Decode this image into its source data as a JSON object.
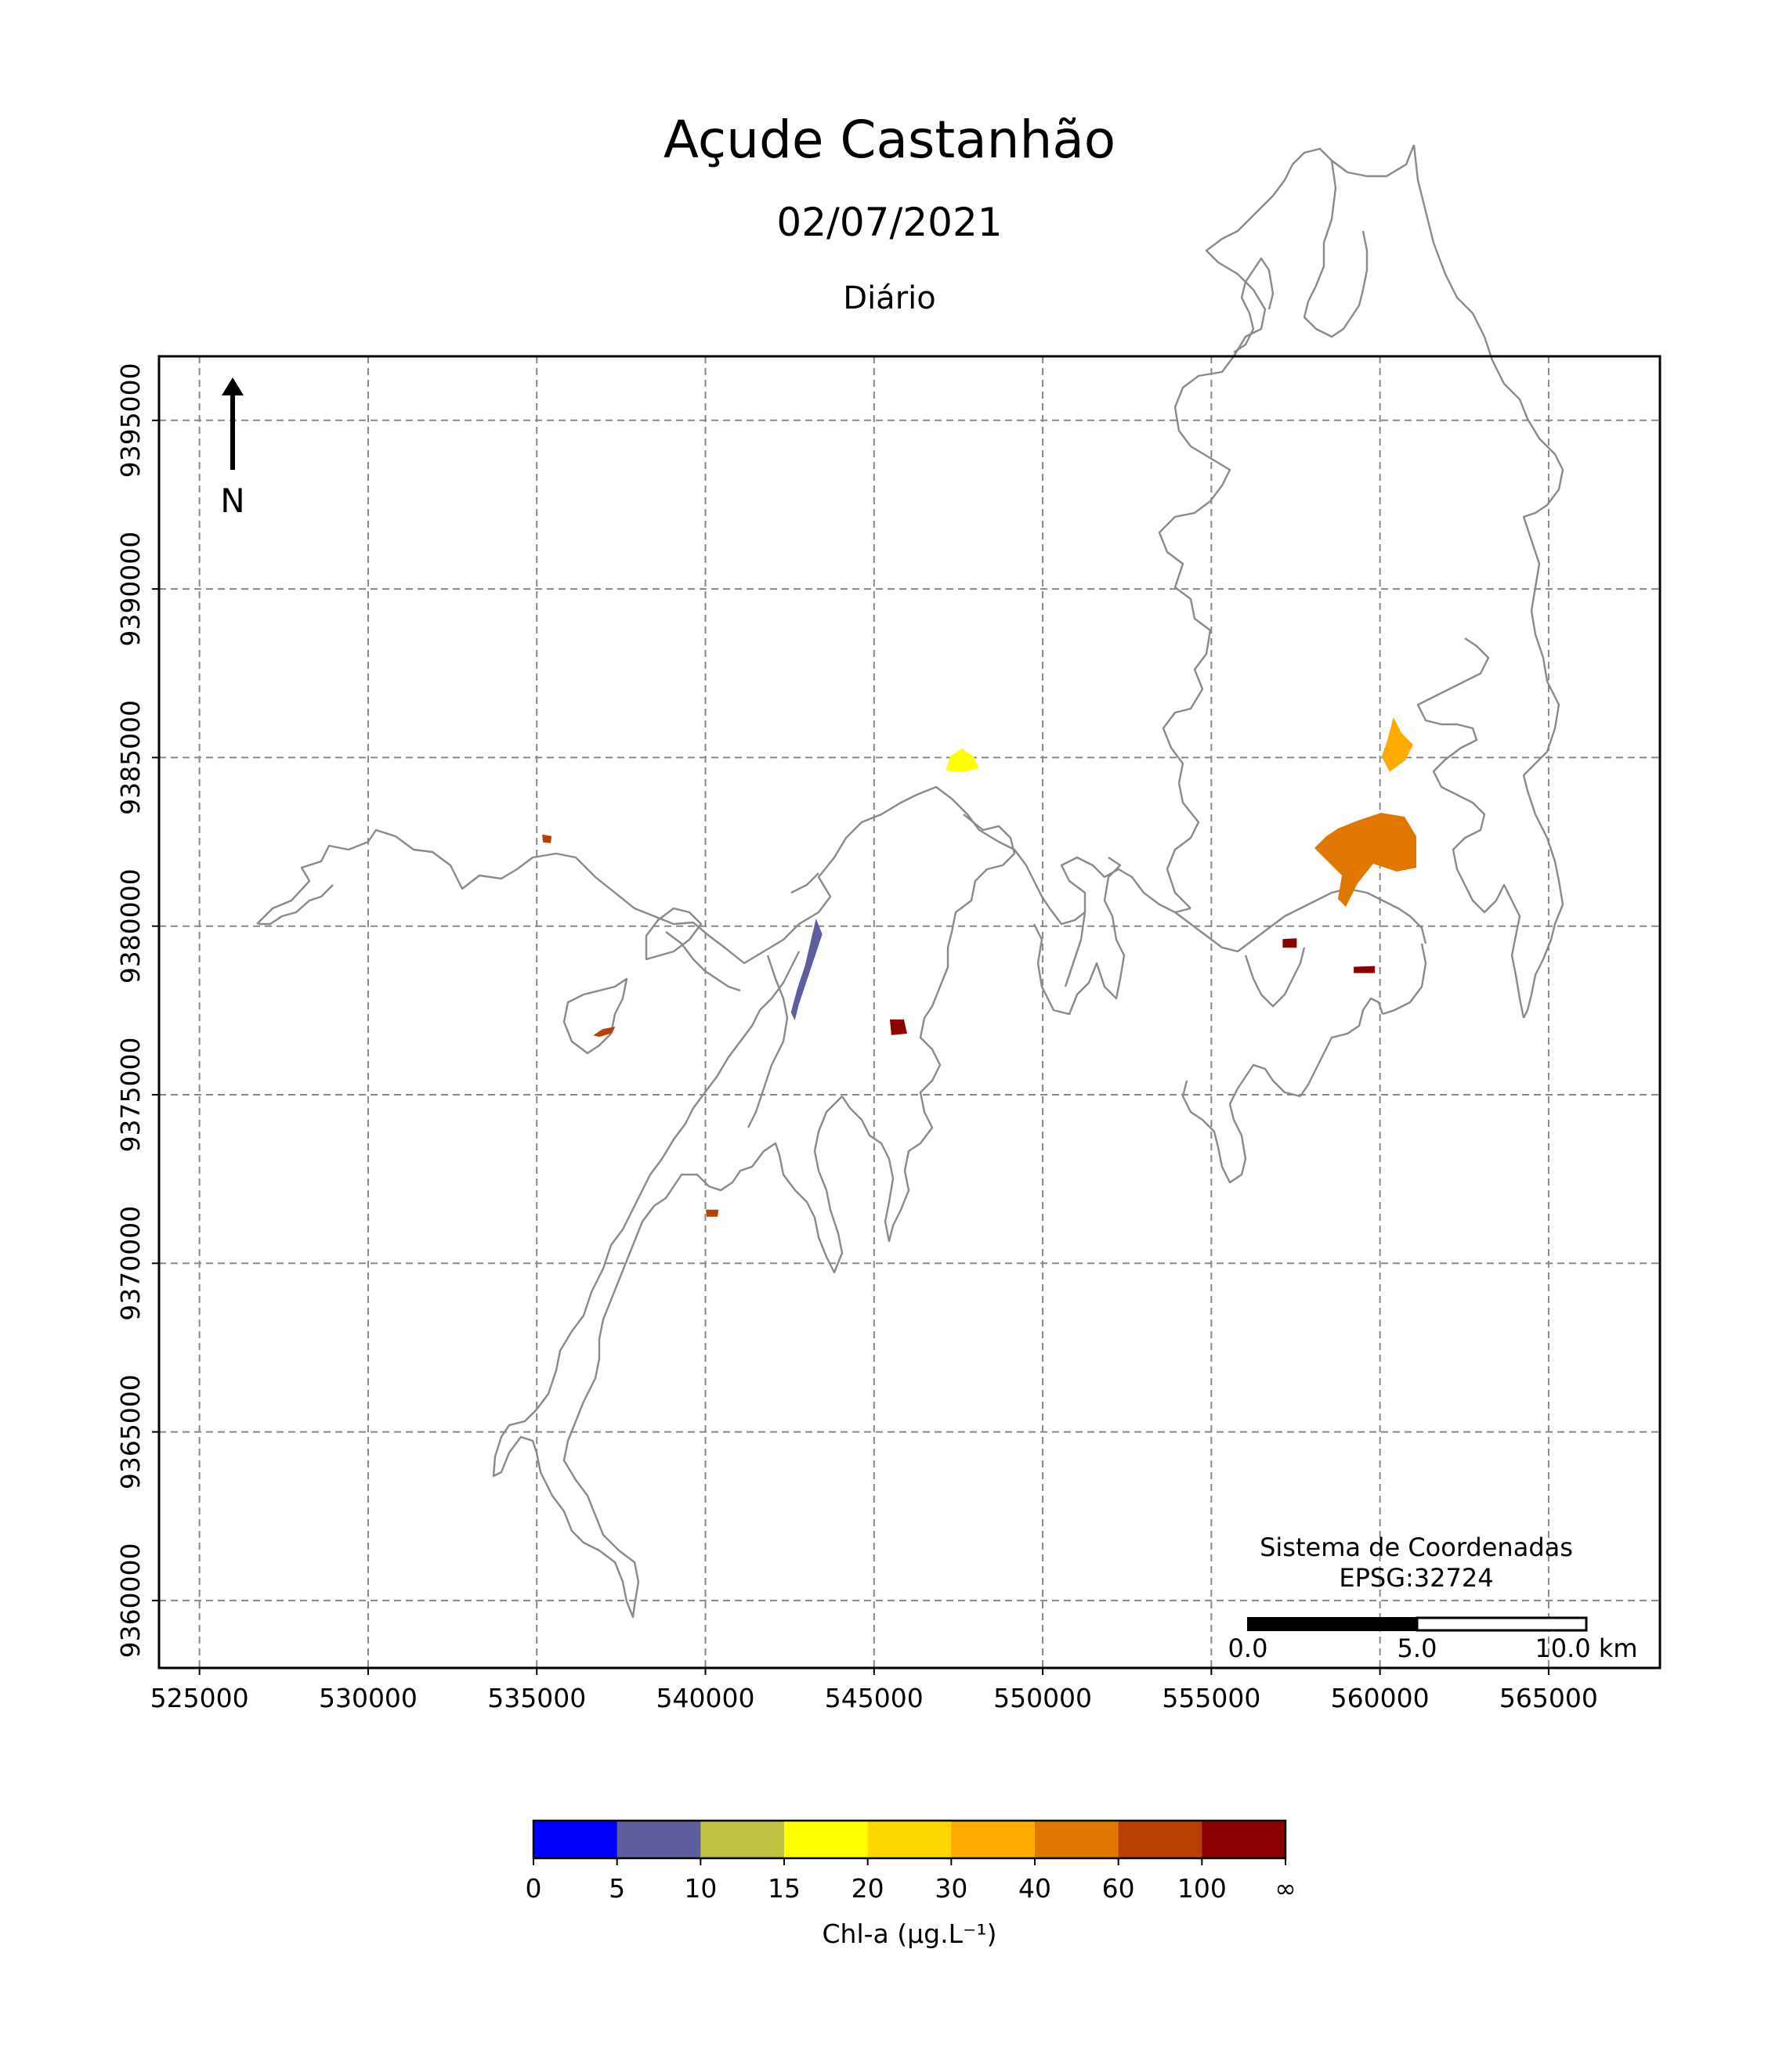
{
  "title": "Açude Castanhão",
  "date": "02/07/2021",
  "period": "Diário",
  "north_label": "N",
  "crs": {
    "line1": "Sistema de Coordenadas",
    "line2": "EPSG:32724"
  },
  "scalebar": {
    "labels": [
      "0.0",
      "5.0",
      "10.0 km"
    ]
  },
  "x_ticks": [
    "525000",
    "530000",
    "535000",
    "540000",
    "545000",
    "550000",
    "555000",
    "560000",
    "565000"
  ],
  "y_ticks": [
    "9360000",
    "9365000",
    "9370000",
    "9375000",
    "9380000",
    "9385000",
    "9390000",
    "9395000"
  ],
  "colorbar": {
    "colors": [
      "#0000ff",
      "#5e5e9e",
      "#c1c144",
      "#ffff00",
      "#ffd700",
      "#ffaa00",
      "#e07800",
      "#b84000",
      "#8b0000"
    ],
    "tick_labels": [
      "0",
      "5",
      "10",
      "15",
      "20",
      "30",
      "40",
      "60",
      "100",
      "∞"
    ],
    "label": "Chl-a (μg.L⁻¹)"
  },
  "chart_data": {
    "type": "heatmap",
    "title": "Açude Castanhão",
    "subtitle": "02/07/2021",
    "xlim": [
      523800,
      568300
    ],
    "ylim": [
      9358000,
      9396900
    ],
    "grid": true,
    "legend": "colorbar-bottom",
    "blobs": [
      {
        "x": 560400,
        "y": 9385500,
        "class": "30-40"
      },
      {
        "x": 559800,
        "y": 9382200,
        "class": "40-60"
      },
      {
        "x": 547600,
        "y": 9384800,
        "class": "15-20"
      },
      {
        "x": 543000,
        "y": 9378600,
        "class": "5-10"
      },
      {
        "x": 545700,
        "y": 9377000,
        "class": "100-∞"
      },
      {
        "x": 557300,
        "y": 9379500,
        "class": "100-∞"
      },
      {
        "x": 559500,
        "y": 9378700,
        "class": "100-∞"
      },
      {
        "x": 537000,
        "y": 9376900,
        "class": "60-100"
      },
      {
        "x": 535300,
        "y": 9382600,
        "class": "60-100"
      },
      {
        "x": 540200,
        "y": 9371500,
        "class": "60-100"
      }
    ]
  }
}
